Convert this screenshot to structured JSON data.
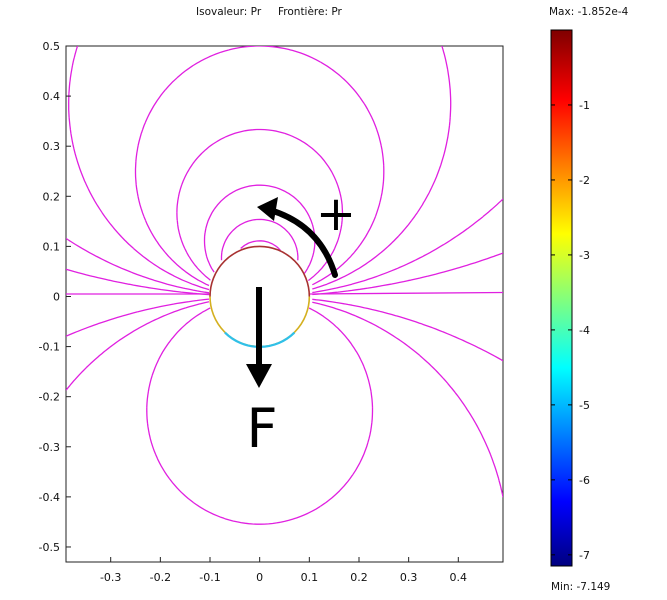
{
  "chart_data": {
    "type": "contour",
    "title_parts": [
      "Isovaleur: Pr",
      "Frontière: Pr"
    ],
    "xlim": [
      -0.39,
      0.49
    ],
    "ylim": [
      -0.53,
      0.5
    ],
    "x_ticks": [
      "-0.3",
      "-0.2",
      "-0.1",
      "0",
      "0.1",
      "0.2",
      "0.3",
      "0.4"
    ],
    "y_ticks": [
      "0.5",
      "0.4",
      "0.3",
      "0.2",
      "0.1",
      "0",
      "-0.1",
      "-0.2",
      "-0.3",
      "-0.4",
      "-0.5"
    ],
    "cylinder": {
      "center": [
        0,
        0
      ],
      "radius": 0.1
    },
    "contour_color": "#e020e0",
    "colorbar": {
      "max_label": "Max: -1.852e-4",
      "min_label": "Min: -7.149",
      "range": [
        -7.149,
        -0.0001852
      ],
      "tick_labels": [
        "-1",
        "-2",
        "-3",
        "-4",
        "-5",
        "-6",
        "-7"
      ],
      "tick_values": [
        -1,
        -2,
        -3,
        -4,
        -5,
        -6,
        -7
      ],
      "colormap": [
        "#00007f",
        "#0000ff",
        "#00ffff",
        "#ffff00",
        "#ff0000",
        "#7f0000"
      ]
    },
    "annotations": [
      {
        "text": "+",
        "x": 0.16,
        "y": 0.17
      },
      {
        "text": "F",
        "x": 0.03,
        "y": -0.29
      }
    ]
  }
}
